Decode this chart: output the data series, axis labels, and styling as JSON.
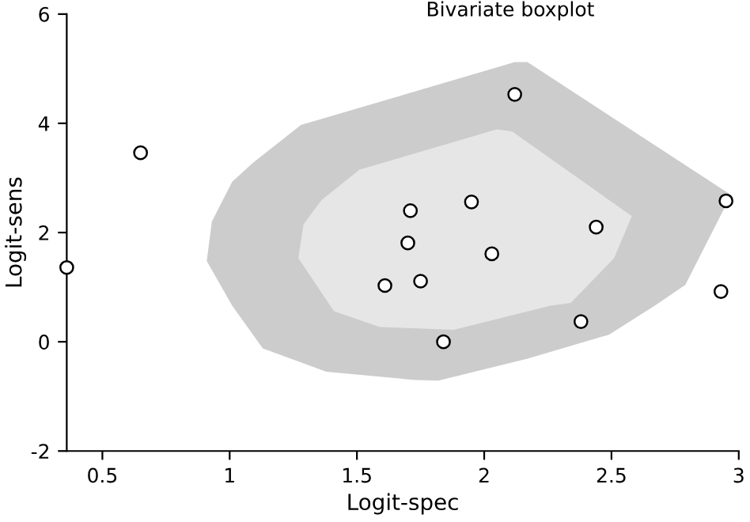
{
  "chart_data": {
    "type": "scatter",
    "title": "Bivariate boxplot",
    "xlabel": "Logit-spec",
    "ylabel": "Logit-sens",
    "xlim": [
      0.36,
      3
    ],
    "ylim": [
      -2,
      6
    ],
    "xticks": [
      0.5,
      1,
      1.5,
      2,
      2.5,
      3
    ],
    "yticks": [
      -2,
      0,
      2,
      4,
      6
    ],
    "grid": false,
    "legend": false,
    "series": [
      {
        "type": "area",
        "color": "#cccccc",
        "x": [
          0.91,
          0.93,
          1.01,
          1.09,
          1.28,
          2.12,
          2.17,
          2.97,
          2.79,
          2.67,
          2.49,
          2.17,
          1.82,
          1.73,
          1.38,
          1.13,
          1.01
        ],
        "values": [
          1.48,
          2.2,
          2.93,
          3.27,
          3.97,
          5.12,
          5.12,
          2.69,
          1.04,
          0.66,
          0.13,
          -0.31,
          -0.71,
          -0.7,
          -0.55,
          -0.12,
          0.66
        ]
      },
      {
        "type": "area",
        "color": "#e6e6e6",
        "x": [
          1.27,
          1.29,
          1.36,
          1.51,
          2.05,
          2.11,
          2.58,
          2.51,
          2.34,
          2.26,
          1.88,
          1.59,
          1.41
        ],
        "values": [
          1.53,
          2.15,
          2.59,
          3.15,
          3.89,
          3.85,
          2.3,
          1.53,
          0.71,
          0.66,
          0.22,
          0.27,
          0.56
        ]
      },
      {
        "marker": "circle",
        "color": "#ffffff",
        "x": [
          0.36,
          0.65,
          1.71,
          1.7,
          1.61,
          1.75,
          1.95,
          2.03,
          1.84,
          2.12,
          2.44,
          2.38,
          2.95,
          2.93
        ],
        "values": [
          1.36,
          3.46,
          2.4,
          1.81,
          1.03,
          1.11,
          2.56,
          1.61,
          0.0,
          4.53,
          2.1,
          0.37,
          2.58,
          0.92
        ]
      }
    ]
  }
}
